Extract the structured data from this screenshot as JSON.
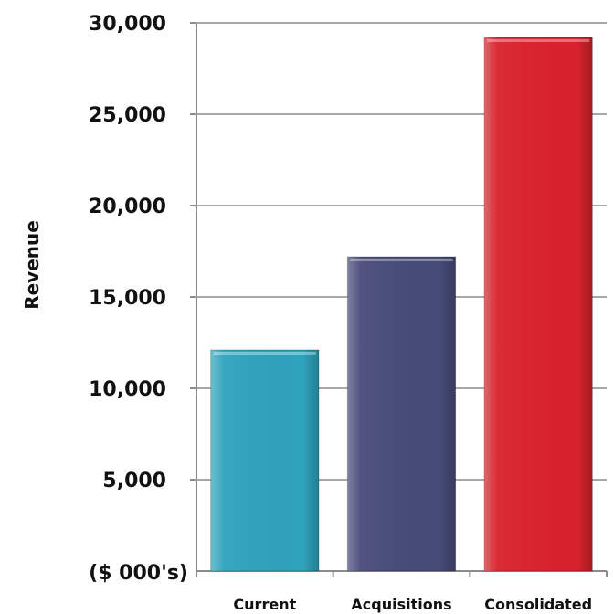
{
  "chart_data": {
    "type": "bar",
    "title": "",
    "xlabel": "",
    "ylabel": "Revenue",
    "baseline_label": "($ 000's)",
    "categories": [
      "Current",
      "Acquisitions",
      "Consolidated"
    ],
    "values": [
      12100,
      17200,
      29200
    ],
    "colors": [
      "#2fa2bd",
      "#474b78",
      "#d9222b"
    ],
    "ylim": [
      0,
      30000
    ],
    "yticks": [
      {
        "value": 5000,
        "label": "5,000"
      },
      {
        "value": 10000,
        "label": "10,000"
      },
      {
        "value": 15000,
        "label": "15,000"
      },
      {
        "value": 20000,
        "label": "20,000"
      },
      {
        "value": 25000,
        "label": "25,000"
      },
      {
        "value": 30000,
        "label": "30,000"
      }
    ],
    "grid": true,
    "legend": "none"
  }
}
